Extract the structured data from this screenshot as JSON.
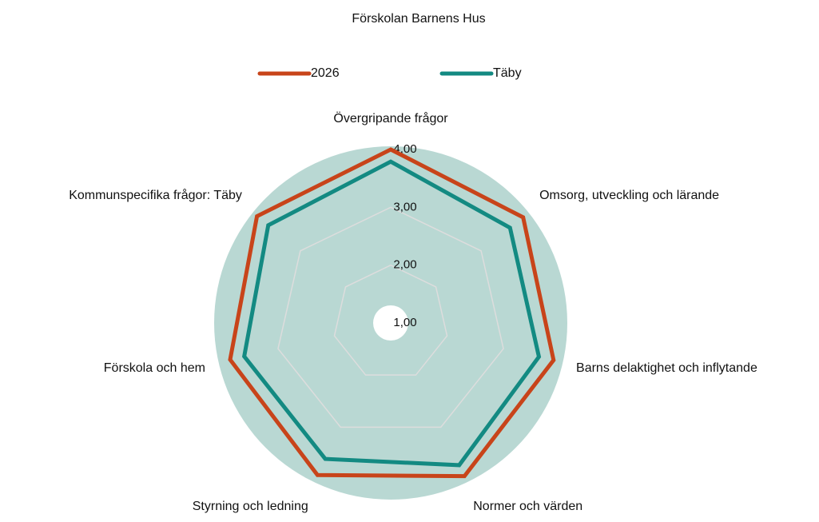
{
  "chart_data": {
    "type": "radar",
    "title": "Förskolan Barnens Hus",
    "categories": [
      "Övergripande frågor",
      "Omsorg, utveckling och lärande",
      "Barns delaktighet och inflytande",
      "Normer och värden",
      "Styrning och ledning",
      "Förskola och hem",
      "Kommunspecifika frågor: Täby"
    ],
    "series": [
      {
        "name": "2026",
        "color": "#c8441a",
        "values": [
          4.0,
          3.93,
          3.89,
          3.94,
          3.92,
          3.85,
          3.96
        ]
      },
      {
        "name": "Täby",
        "color": "#138a82",
        "values": [
          3.79,
          3.64,
          3.63,
          3.73,
          3.61,
          3.6,
          3.71
        ]
      }
    ],
    "rlim": [
      1,
      4
    ],
    "rticks": [
      {
        "value": 1,
        "label": "1,00"
      },
      {
        "value": 2,
        "label": "2,00"
      },
      {
        "value": 3,
        "label": "3,00"
      },
      {
        "value": 4,
        "label": "4,00"
      }
    ],
    "grid": true,
    "legend": "top"
  }
}
